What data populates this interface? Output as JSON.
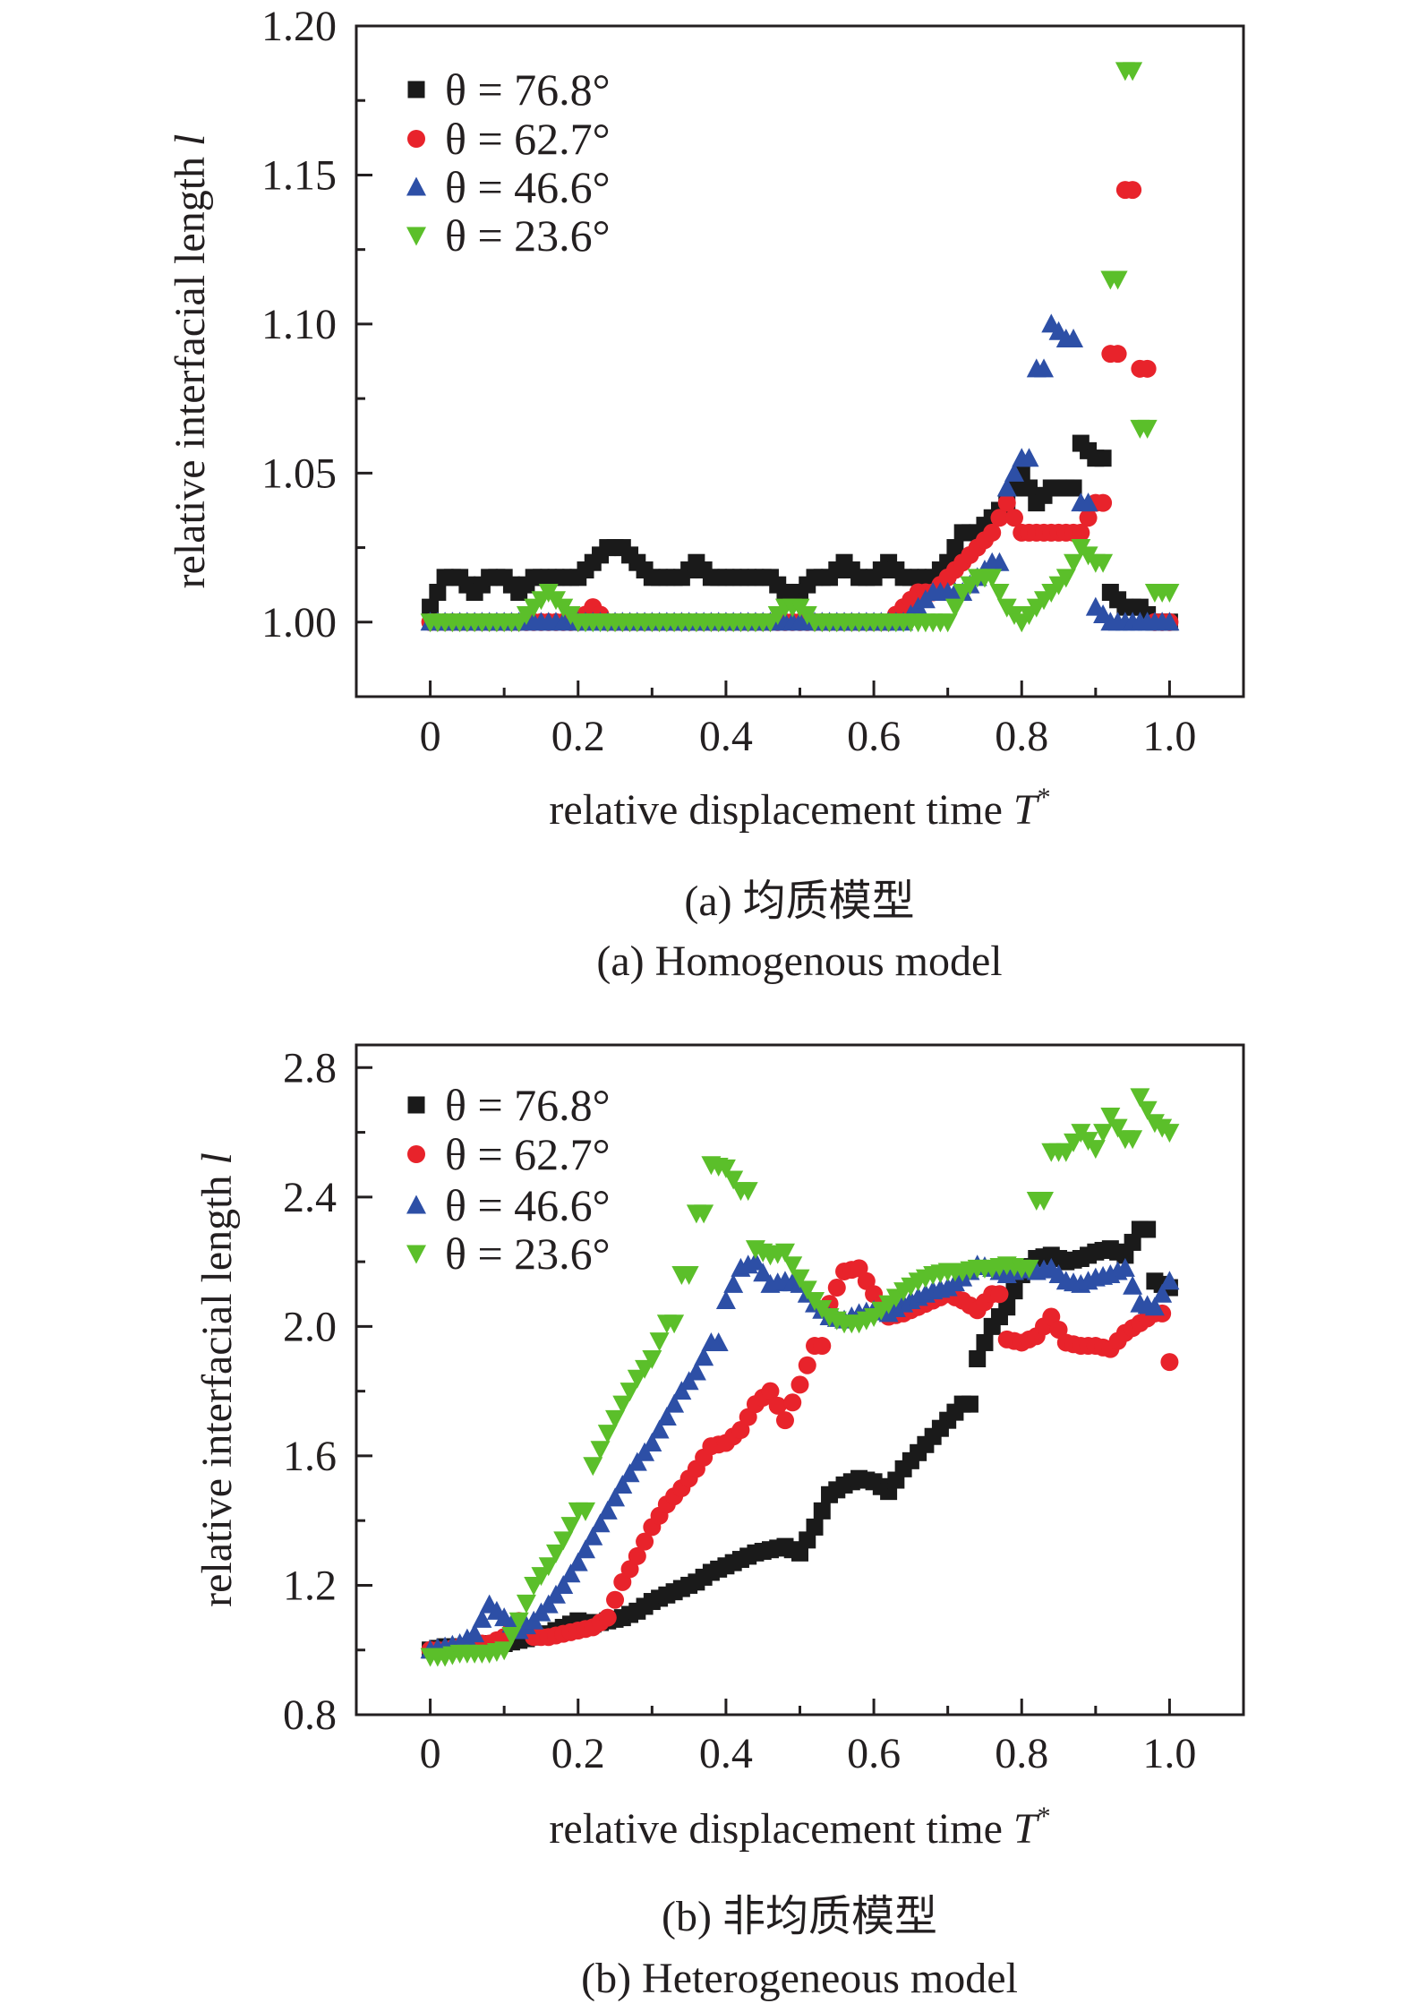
{
  "colors": {
    "s76_8": "#1a1a1a",
    "s62_7": "#e8232b",
    "s46_6": "#2d4fa6",
    "s23_6": "#5bbf2a",
    "axis": "#231f20"
  },
  "chart_data": [
    {
      "type": "scatter",
      "caption_cn": "(a) 均质模型",
      "caption_en": "(a) Homogenous model",
      "xlabel": "relative displacement time ",
      "xlabel_var": "T",
      "xlabel_sup": "*",
      "ylabel": "relative interfacial length ",
      "ylabel_var": "l",
      "xlim": [
        -0.1,
        1.1
      ],
      "ylim": [
        0.975,
        1.2
      ],
      "xticks": [
        "0",
        "0.2",
        "0.4",
        "0.6",
        "0.8",
        "1.0"
      ],
      "yticks": [
        "1.00",
        "1.05",
        "1.10",
        "1.15",
        "1.20"
      ],
      "grid": false,
      "legend_position": "top-left",
      "x": [
        0,
        0.02,
        0.04,
        0.06,
        0.08,
        0.1,
        0.12,
        0.14,
        0.16,
        0.18,
        0.2,
        0.22,
        0.24,
        0.26,
        0.28,
        0.3,
        0.32,
        0.34,
        0.36,
        0.38,
        0.4,
        0.42,
        0.44,
        0.46,
        0.48,
        0.5,
        0.52,
        0.54,
        0.56,
        0.58,
        0.6,
        0.62,
        0.64,
        0.66,
        0.68,
        0.7,
        0.72,
        0.74,
        0.76,
        0.78,
        0.8,
        0.82,
        0.84,
        0.86,
        0.88,
        0.9,
        0.92,
        0.94,
        0.96,
        0.98,
        1.0
      ],
      "series": [
        {
          "name": "θ = 76.8°",
          "marker": "square",
          "values": [
            1.005,
            1.015,
            1.015,
            1.01,
            1.015,
            1.015,
            1.01,
            1.015,
            1.015,
            1.015,
            1.015,
            1.02,
            1.025,
            1.025,
            1.02,
            1.015,
            1.015,
            1.015,
            1.02,
            1.015,
            1.015,
            1.015,
            1.015,
            1.015,
            1.01,
            1.01,
            1.015,
            1.015,
            1.02,
            1.015,
            1.015,
            1.02,
            1.015,
            1.015,
            1.015,
            1.02,
            1.03,
            1.03,
            1.035,
            1.04,
            1.05,
            1.04,
            1.045,
            1.045,
            1.06,
            1.055,
            1.01,
            1.005,
            1.005,
            1.0,
            1.0
          ]
        },
        {
          "name": "θ = 62.7°",
          "marker": "circle",
          "values": [
            1.0,
            1.0,
            1.0,
            1.0,
            1.0,
            1.0,
            1.0,
            1.0,
            1.0,
            1.0,
            1.0,
            1.005,
            1.0,
            1.0,
            1.0,
            1.0,
            1.0,
            1.0,
            1.0,
            1.0,
            1.0,
            1.0,
            1.0,
            1.0,
            1.0,
            1.0,
            1.0,
            1.0,
            1.0,
            1.0,
            1.0,
            1.0,
            1.005,
            1.01,
            1.01,
            1.015,
            1.02,
            1.025,
            1.03,
            1.04,
            1.03,
            1.03,
            1.03,
            1.03,
            1.03,
            1.04,
            1.09,
            1.145,
            1.085,
            1.0,
            1.0
          ]
        },
        {
          "name": "θ = 46.6°",
          "marker": "triangle-up",
          "values": [
            1.0,
            1.0,
            1.0,
            1.0,
            1.0,
            1.0,
            1.0,
            1.0,
            1.0,
            1.0,
            1.0,
            1.0,
            1.0,
            1.0,
            1.0,
            1.0,
            1.0,
            1.0,
            1.0,
            1.0,
            1.0,
            1.0,
            1.0,
            1.0,
            1.0,
            1.0,
            1.0,
            1.0,
            1.0,
            1.0,
            1.0,
            1.0,
            1.0,
            1.005,
            1.01,
            1.01,
            1.01,
            1.015,
            1.02,
            1.045,
            1.055,
            1.085,
            1.1,
            1.095,
            1.04,
            1.005,
            1.0,
            1.0,
            1.0,
            1.0,
            1.0
          ]
        },
        {
          "name": "θ = 23.6°",
          "marker": "triangle-down",
          "values": [
            1.0,
            1.0,
            1.0,
            1.0,
            1.0,
            1.0,
            1.0,
            1.005,
            1.01,
            1.005,
            1.0,
            1.0,
            1.0,
            1.0,
            1.0,
            1.0,
            1.0,
            1.0,
            1.0,
            1.0,
            1.0,
            1.0,
            1.0,
            1.0,
            1.005,
            1.005,
            1.0,
            1.0,
            1.0,
            1.0,
            1.0,
            1.0,
            1.0,
            1.0,
            1.0,
            1.0,
            1.01,
            1.015,
            1.015,
            1.005,
            1.0,
            1.005,
            1.01,
            1.015,
            1.025,
            1.02,
            1.115,
            1.185,
            1.065,
            1.01,
            1.01
          ]
        }
      ]
    },
    {
      "type": "scatter",
      "caption_cn": "(b) 非均质模型",
      "caption_en": "(b) Heterogeneous model",
      "xlabel": "relative displacement time ",
      "xlabel_var": "T",
      "xlabel_sup": "*",
      "ylabel": "relative interfacial length ",
      "ylabel_var": "l",
      "xlim": [
        -0.1,
        1.1
      ],
      "ylim": [
        0.8,
        2.87
      ],
      "xticks": [
        "0",
        "0.2",
        "0.4",
        "0.6",
        "0.8",
        "1.0"
      ],
      "yticks": [
        "0.8",
        "1.2",
        "1.6",
        "2.0",
        "2.4",
        "2.8"
      ],
      "grid": false,
      "legend_position": "top-left",
      "x": [
        0,
        0.02,
        0.04,
        0.06,
        0.08,
        0.1,
        0.12,
        0.14,
        0.16,
        0.18,
        0.2,
        0.22,
        0.24,
        0.26,
        0.28,
        0.3,
        0.32,
        0.34,
        0.36,
        0.38,
        0.4,
        0.42,
        0.44,
        0.46,
        0.48,
        0.5,
        0.52,
        0.54,
        0.56,
        0.58,
        0.6,
        0.62,
        0.64,
        0.66,
        0.68,
        0.7,
        0.72,
        0.74,
        0.76,
        0.78,
        0.8,
        0.82,
        0.84,
        0.86,
        0.88,
        0.9,
        0.92,
        0.94,
        0.96,
        0.98,
        1.0
      ],
      "series": [
        {
          "name": "θ = 76.8°",
          "marker": "square",
          "values": [
            1.0,
            1.01,
            1.01,
            1.01,
            1.02,
            1.02,
            1.03,
            1.04,
            1.05,
            1.07,
            1.09,
            1.08,
            1.09,
            1.1,
            1.12,
            1.15,
            1.17,
            1.19,
            1.21,
            1.24,
            1.26,
            1.28,
            1.3,
            1.31,
            1.32,
            1.3,
            1.38,
            1.48,
            1.51,
            1.53,
            1.52,
            1.49,
            1.56,
            1.61,
            1.66,
            1.71,
            1.76,
            1.9,
            2.0,
            2.06,
            2.16,
            2.21,
            2.22,
            2.2,
            2.21,
            2.23,
            2.24,
            2.22,
            2.3,
            2.14,
            2.12
          ]
        },
        {
          "name": "θ = 62.7°",
          "marker": "circle",
          "values": [
            1.0,
            1.0,
            1.01,
            1.02,
            1.02,
            1.04,
            1.09,
            1.04,
            1.04,
            1.05,
            1.06,
            1.07,
            1.1,
            1.21,
            1.29,
            1.38,
            1.45,
            1.5,
            1.56,
            1.63,
            1.64,
            1.68,
            1.76,
            1.8,
            1.71,
            1.82,
            1.94,
            2.07,
            2.17,
            2.18,
            2.1,
            2.03,
            2.04,
            2.06,
            2.08,
            2.1,
            2.08,
            2.05,
            2.1,
            1.96,
            1.95,
            1.97,
            2.03,
            1.95,
            1.94,
            1.94,
            1.93,
            1.98,
            2.01,
            2.04,
            1.89
          ]
        },
        {
          "name": "θ = 46.6°",
          "marker": "triangle-up",
          "values": [
            1.0,
            1.01,
            1.02,
            1.05,
            1.14,
            1.1,
            1.06,
            1.09,
            1.14,
            1.2,
            1.27,
            1.35,
            1.43,
            1.51,
            1.58,
            1.64,
            1.72,
            1.8,
            1.86,
            1.95,
            2.08,
            2.18,
            2.2,
            2.13,
            2.14,
            2.13,
            2.07,
            2.03,
            2.02,
            2.04,
            2.05,
            2.04,
            2.07,
            2.09,
            2.11,
            2.12,
            2.15,
            2.19,
            2.18,
            2.16,
            2.18,
            2.17,
            2.18,
            2.14,
            2.13,
            2.15,
            2.16,
            2.18,
            2.07,
            2.06,
            2.14
          ]
        },
        {
          "name": "θ = 23.6°",
          "marker": "triangle-down",
          "values": [
            0.98,
            0.98,
            0.99,
            0.99,
            0.99,
            1.0,
            1.09,
            1.2,
            1.26,
            1.34,
            1.43,
            1.57,
            1.67,
            1.76,
            1.84,
            1.9,
            2.01,
            2.16,
            2.35,
            2.5,
            2.49,
            2.42,
            2.24,
            2.22,
            2.23,
            2.15,
            2.08,
            2.03,
            2.01,
            2.01,
            2.03,
            2.07,
            2.11,
            2.14,
            2.16,
            2.17,
            2.17,
            2.18,
            2.18,
            2.19,
            2.18,
            2.39,
            2.54,
            2.54,
            2.6,
            2.55,
            2.65,
            2.58,
            2.71,
            2.63,
            2.6
          ]
        }
      ]
    }
  ]
}
